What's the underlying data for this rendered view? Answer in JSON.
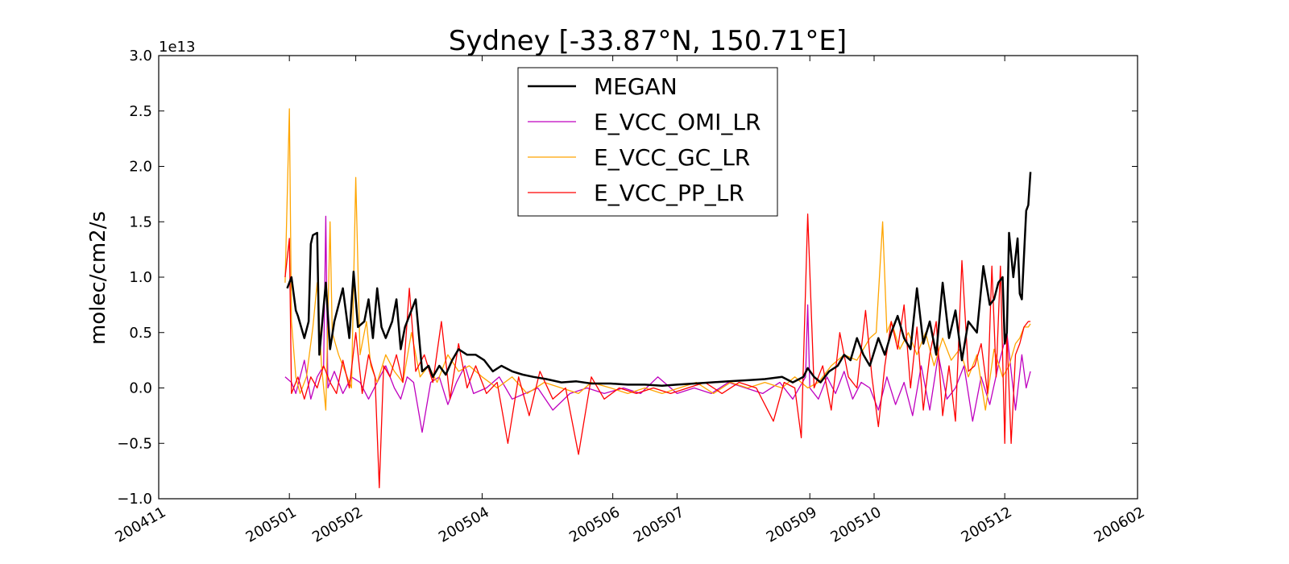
{
  "chart_data": {
    "type": "line",
    "title": "Sydney [-33.87°N, 150.71°E]",
    "ylabel": "molec/cm2/s",
    "y_offset_label": "1e13",
    "ylim": [
      -1.0,
      3.0
    ],
    "y_ticks": [
      -1.0,
      -0.5,
      0.0,
      0.5,
      1.0,
      1.5,
      2.0,
      2.5,
      3.0
    ],
    "y_tick_labels": [
      "−1.0",
      "−0.5",
      "0.0",
      "0.5",
      "1.0",
      "1.5",
      "2.0",
      "2.5",
      "3.0"
    ],
    "xlim": [
      "2004-11-01",
      "2006-02-01"
    ],
    "x_ticks": [
      "2004-11-01",
      "2005-01-01",
      "2005-02-01",
      "2005-04-01",
      "2005-06-01",
      "2005-07-01",
      "2005-09-01",
      "2005-10-01",
      "2005-12-01",
      "2006-02-01"
    ],
    "x_tick_labels": [
      "200411",
      "200501",
      "200502",
      "200504",
      "200506",
      "200507",
      "200509",
      "200510",
      "200512",
      "200602"
    ],
    "legend_position": "top-center",
    "grid": false,
    "series": [
      {
        "name": "MEGAN",
        "color": "#000000",
        "x": [
          "2004-12-31",
          "2005-01-02",
          "2005-01-04",
          "2005-01-05",
          "2005-01-08",
          "2005-01-10",
          "2005-01-11",
          "2005-01-12",
          "2005-01-14",
          "2005-01-15",
          "2005-01-18",
          "2005-01-20",
          "2005-01-22",
          "2005-01-26",
          "2005-01-29",
          "2005-01-31",
          "2005-02-02",
          "2005-02-05",
          "2005-02-07",
          "2005-02-09",
          "2005-02-11",
          "2005-02-13",
          "2005-02-15",
          "2005-02-18",
          "2005-02-20",
          "2005-02-22",
          "2005-02-24",
          "2005-02-27",
          "2005-03-01",
          "2005-03-04",
          "2005-03-07",
          "2005-03-09",
          "2005-03-12",
          "2005-03-15",
          "2005-03-18",
          "2005-03-21",
          "2005-03-25",
          "2005-03-29",
          "2005-04-02",
          "2005-04-06",
          "2005-04-10",
          "2005-04-15",
          "2005-04-20",
          "2005-04-25",
          "2005-05-01",
          "2005-05-08",
          "2005-05-15",
          "2005-05-22",
          "2005-05-31",
          "2005-06-08",
          "2005-06-16",
          "2005-06-24",
          "2005-07-01",
          "2005-07-09",
          "2005-07-17",
          "2005-07-25",
          "2005-08-03",
          "2005-08-11",
          "2005-08-19",
          "2005-08-24",
          "2005-08-29",
          "2005-08-31",
          "2005-09-03",
          "2005-09-06",
          "2005-09-10",
          "2005-09-14",
          "2005-09-17",
          "2005-09-20",
          "2005-09-23",
          "2005-09-26",
          "2005-09-29",
          "2005-10-03",
          "2005-10-06",
          "2005-10-09",
          "2005-10-12",
          "2005-10-15",
          "2005-10-18",
          "2005-10-21",
          "2005-10-24",
          "2005-10-27",
          "2005-10-30",
          "2005-11-02",
          "2005-11-05",
          "2005-11-08",
          "2005-11-11",
          "2005-11-14",
          "2005-11-18",
          "2005-11-21",
          "2005-11-24",
          "2005-11-26",
          "2005-11-28",
          "2005-11-30",
          "2005-12-01",
          "2005-12-02",
          "2005-12-03",
          "2005-12-05",
          "2005-12-07",
          "2005-12-08",
          "2005-12-09",
          "2005-12-10",
          "2005-12-11",
          "2005-12-12",
          "2005-12-13"
        ],
        "values": [
          0.9,
          1.0,
          0.7,
          0.65,
          0.45,
          0.6,
          1.3,
          1.38,
          1.4,
          0.3,
          0.95,
          0.35,
          0.6,
          0.9,
          0.45,
          1.05,
          0.55,
          0.6,
          0.8,
          0.45,
          0.9,
          0.55,
          0.45,
          0.6,
          0.8,
          0.35,
          0.55,
          0.7,
          0.8,
          0.15,
          0.2,
          0.1,
          0.2,
          0.12,
          0.25,
          0.35,
          0.3,
          0.3,
          0.25,
          0.15,
          0.2,
          0.15,
          0.12,
          0.1,
          0.08,
          0.05,
          0.06,
          0.04,
          0.04,
          0.03,
          0.03,
          0.02,
          0.03,
          0.04,
          0.05,
          0.06,
          0.07,
          0.08,
          0.1,
          0.05,
          0.1,
          0.18,
          0.1,
          0.05,
          0.15,
          0.2,
          0.3,
          0.25,
          0.45,
          0.3,
          0.2,
          0.45,
          0.3,
          0.5,
          0.65,
          0.45,
          0.35,
          0.9,
          0.4,
          0.6,
          0.3,
          0.95,
          0.45,
          0.7,
          0.25,
          0.6,
          0.5,
          1.1,
          0.75,
          0.8,
          0.95,
          1.0,
          0.4,
          0.5,
          1.4,
          1.0,
          1.35,
          0.85,
          0.8,
          1.2,
          1.6,
          1.65,
          1.95
        ]
      },
      {
        "name": "E_VCC_OMI_LR",
        "color": "#bf00bf",
        "x": [
          "2004-12-30",
          "2005-01-02",
          "2005-01-04",
          "2005-01-08",
          "2005-01-11",
          "2005-01-14",
          "2005-01-17",
          "2005-01-18",
          "2005-01-19",
          "2005-01-22",
          "2005-01-26",
          "2005-01-30",
          "2005-02-03",
          "2005-02-07",
          "2005-02-11",
          "2005-02-15",
          "2005-02-19",
          "2005-02-22",
          "2005-02-25",
          "2005-02-28",
          "2005-03-04",
          "2005-03-08",
          "2005-03-12",
          "2005-03-16",
          "2005-03-20",
          "2005-03-24",
          "2005-03-28",
          "2005-04-03",
          "2005-04-09",
          "2005-04-15",
          "2005-04-21",
          "2005-04-27",
          "2005-05-04",
          "2005-05-12",
          "2005-05-20",
          "2005-05-28",
          "2005-06-06",
          "2005-06-14",
          "2005-06-22",
          "2005-07-01",
          "2005-07-09",
          "2005-07-17",
          "2005-07-25",
          "2005-08-02",
          "2005-08-10",
          "2005-08-18",
          "2005-08-24",
          "2005-08-30",
          "2005-08-31",
          "2005-09-01",
          "2005-09-05",
          "2005-09-09",
          "2005-09-13",
          "2005-09-17",
          "2005-09-21",
          "2005-09-25",
          "2005-09-29",
          "2005-10-03",
          "2005-10-07",
          "2005-10-11",
          "2005-10-15",
          "2005-10-19",
          "2005-10-23",
          "2005-10-27",
          "2005-10-31",
          "2005-11-04",
          "2005-11-08",
          "2005-11-12",
          "2005-11-16",
          "2005-11-20",
          "2005-11-24",
          "2005-11-28",
          "2005-12-02",
          "2005-12-06",
          "2005-12-09",
          "2005-12-11",
          "2005-12-13"
        ],
        "values": [
          0.1,
          0.05,
          -0.05,
          0.25,
          -0.1,
          0.1,
          0.2,
          1.55,
          0.0,
          0.15,
          -0.05,
          0.1,
          0.05,
          -0.1,
          0.05,
          0.2,
          0.0,
          -0.1,
          0.1,
          0.05,
          -0.4,
          0.05,
          0.1,
          -0.15,
          0.05,
          0.2,
          -0.05,
          0.0,
          0.1,
          -0.1,
          -0.05,
          0.0,
          -0.2,
          -0.05,
          0.0,
          -0.05,
          0.0,
          -0.05,
          0.1,
          -0.05,
          0.0,
          -0.05,
          0.05,
          0.0,
          -0.05,
          0.05,
          -0.1,
          0.1,
          0.75,
          0.0,
          -0.1,
          0.1,
          -0.05,
          0.15,
          -0.1,
          0.05,
          0.0,
          -0.2,
          0.1,
          -0.15,
          0.05,
          -0.25,
          0.2,
          -0.2,
          0.3,
          -0.1,
          0.0,
          0.2,
          -0.3,
          0.1,
          -0.15,
          0.2,
          0.5,
          -0.2,
          0.3,
          0.0,
          0.15
        ]
      },
      {
        "name": "E_VCC_GC_LR",
        "color": "#ffa500",
        "x": [
          "2004-12-30",
          "2005-01-01",
          "2005-01-02",
          "2005-01-04",
          "2005-01-06",
          "2005-01-09",
          "2005-01-12",
          "2005-01-14",
          "2005-01-16",
          "2005-01-18",
          "2005-01-20",
          "2005-01-21",
          "2005-01-24",
          "2005-01-27",
          "2005-01-30",
          "2005-02-01",
          "2005-02-03",
          "2005-02-06",
          "2005-02-08",
          "2005-02-11",
          "2005-02-15",
          "2005-02-19",
          "2005-02-23",
          "2005-02-27",
          "2005-03-03",
          "2005-03-07",
          "2005-03-11",
          "2005-03-16",
          "2005-03-21",
          "2005-03-26",
          "2005-04-01",
          "2005-04-08",
          "2005-04-15",
          "2005-04-22",
          "2005-04-30",
          "2005-05-08",
          "2005-05-16",
          "2005-05-22",
          "2005-05-31",
          "2005-06-08",
          "2005-06-16",
          "2005-06-24",
          "2005-07-02",
          "2005-07-10",
          "2005-07-18",
          "2005-07-26",
          "2005-08-03",
          "2005-08-11",
          "2005-08-19",
          "2005-08-25",
          "2005-08-31",
          "2005-09-05",
          "2005-09-11",
          "2005-09-17",
          "2005-09-23",
          "2005-09-29",
          "2005-10-02",
          "2005-10-05",
          "2005-10-07",
          "2005-10-09",
          "2005-10-13",
          "2005-10-17",
          "2005-10-21",
          "2005-10-25",
          "2005-10-29",
          "2005-11-02",
          "2005-11-06",
          "2005-11-10",
          "2005-11-14",
          "2005-11-18",
          "2005-11-22",
          "2005-11-26",
          "2005-11-30",
          "2005-12-03",
          "2005-12-06",
          "2005-12-08",
          "2005-12-10",
          "2005-12-12",
          "2005-12-13"
        ],
        "values": [
          0.95,
          2.52,
          0.6,
          0.1,
          -0.05,
          0.1,
          0.55,
          0.95,
          0.2,
          -0.2,
          1.5,
          0.5,
          0.3,
          0.15,
          0.0,
          1.9,
          0.3,
          0.6,
          0.2,
          0.05,
          0.3,
          0.15,
          0.05,
          0.5,
          0.1,
          0.2,
          0.05,
          0.3,
          0.15,
          0.2,
          0.1,
          0.0,
          0.1,
          -0.05,
          0.05,
          0.0,
          -0.05,
          0.05,
          0.0,
          -0.05,
          0.0,
          -0.05,
          0.0,
          0.05,
          -0.05,
          0.05,
          0.0,
          0.05,
          0.0,
          0.1,
          0.0,
          0.05,
          0.2,
          0.3,
          0.25,
          0.45,
          0.5,
          1.5,
          0.5,
          0.6,
          0.35,
          0.5,
          0.3,
          0.5,
          0.2,
          0.45,
          0.25,
          0.35,
          0.1,
          0.3,
          -0.2,
          0.35,
          0.1,
          0.2,
          0.4,
          0.45,
          0.55,
          0.55,
          0.58
        ]
      },
      {
        "name": "E_VCC_PP_LR",
        "color": "#ff0000",
        "x": [
          "2004-12-30",
          "2005-01-01",
          "2005-01-02",
          "2005-01-05",
          "2005-01-08",
          "2005-01-11",
          "2005-01-14",
          "2005-01-17",
          "2005-01-20",
          "2005-01-23",
          "2005-01-26",
          "2005-01-29",
          "2005-02-01",
          "2005-02-04",
          "2005-02-07",
          "2005-02-10",
          "2005-02-12",
          "2005-02-14",
          "2005-02-17",
          "2005-02-20",
          "2005-02-23",
          "2005-02-26",
          "2005-03-01",
          "2005-03-05",
          "2005-03-09",
          "2005-03-13",
          "2005-03-17",
          "2005-03-21",
          "2005-03-25",
          "2005-03-29",
          "2005-04-03",
          "2005-04-08",
          "2005-04-13",
          "2005-04-18",
          "2005-04-23",
          "2005-04-28",
          "2005-05-04",
          "2005-05-10",
          "2005-05-16",
          "2005-05-22",
          "2005-05-28",
          "2005-06-04",
          "2005-06-12",
          "2005-06-20",
          "2005-06-28",
          "2005-07-06",
          "2005-07-14",
          "2005-07-22",
          "2005-07-30",
          "2005-08-07",
          "2005-08-15",
          "2005-08-20",
          "2005-08-25",
          "2005-08-28",
          "2005-08-31",
          "2005-09-03",
          "2005-09-07",
          "2005-09-11",
          "2005-09-15",
          "2005-09-19",
          "2005-09-23",
          "2005-09-27",
          "2005-09-30",
          "2005-10-03",
          "2005-10-06",
          "2005-10-09",
          "2005-10-12",
          "2005-10-15",
          "2005-10-18",
          "2005-10-21",
          "2005-10-24",
          "2005-10-27",
          "2005-10-30",
          "2005-11-02",
          "2005-11-05",
          "2005-11-08",
          "2005-11-11",
          "2005-11-14",
          "2005-11-17",
          "2005-11-20",
          "2005-11-23",
          "2005-11-25",
          "2005-11-27",
          "2005-11-29",
          "2005-12-01",
          "2005-12-02",
          "2005-12-04",
          "2005-12-06",
          "2005-12-08",
          "2005-12-10",
          "2005-12-12",
          "2005-12-13"
        ],
        "values": [
          1.0,
          1.35,
          -0.05,
          0.1,
          -0.1,
          0.1,
          0.0,
          0.2,
          0.05,
          -0.05,
          0.25,
          0.0,
          0.5,
          -0.05,
          0.3,
          0.1,
          -0.9,
          0.2,
          0.1,
          0.3,
          0.05,
          0.9,
          0.15,
          0.3,
          0.05,
          0.6,
          -0.1,
          0.4,
          0.0,
          0.2,
          -0.05,
          0.05,
          -0.5,
          0.1,
          -0.25,
          0.15,
          -0.1,
          0.0,
          -0.6,
          0.1,
          -0.1,
          0.0,
          -0.05,
          0.0,
          -0.05,
          0.0,
          0.05,
          -0.05,
          0.05,
          0.0,
          -0.3,
          0.05,
          0.0,
          -0.45,
          1.57,
          0.0,
          0.2,
          -0.2,
          0.5,
          0.1,
          0.0,
          0.7,
          0.1,
          -0.35,
          0.2,
          0.6,
          0.35,
          0.75,
          0.0,
          0.55,
          -0.2,
          0.3,
          0.6,
          -0.25,
          0.2,
          -0.3,
          1.15,
          0.15,
          0.2,
          0.4,
          -0.05,
          1.1,
          0.1,
          1.1,
          -0.5,
          0.5,
          -0.5,
          0.3,
          0.4,
          0.55,
          0.6,
          0.6
        ]
      }
    ]
  }
}
